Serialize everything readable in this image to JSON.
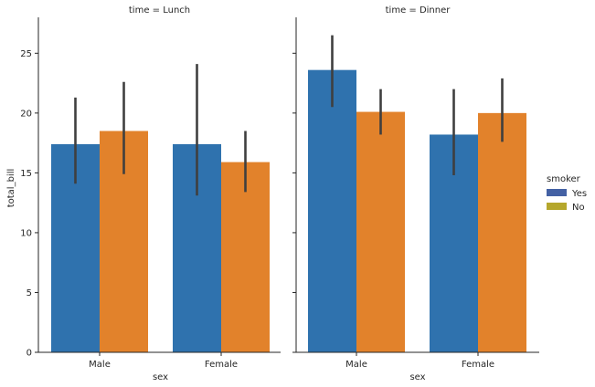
{
  "chart_data": {
    "type": "bar",
    "x_label": "sex",
    "y_label": "total_bill",
    "ylim": [
      0,
      28
    ],
    "y_ticks": [
      0,
      5,
      10,
      15,
      20,
      25
    ],
    "categories": [
      "Male",
      "Female"
    ],
    "grid": false,
    "legend": {
      "title": "smoker",
      "placement": "right",
      "items": [
        {
          "label": "Yes",
          "color": "#4461a4"
        },
        {
          "label": "No",
          "color": "#b5a72c"
        }
      ]
    },
    "series_colors": {
      "Yes": "#2f72ae",
      "No": "#e2822b"
    },
    "facets": [
      {
        "title": "time = Lunch",
        "series": [
          {
            "name": "Yes",
            "values": [
              17.4,
              17.4
            ],
            "ci_low": [
              14.1,
              13.1
            ],
            "ci_high": [
              21.3,
              24.1
            ]
          },
          {
            "name": "No",
            "values": [
              18.5,
              15.9
            ],
            "ci_low": [
              14.9,
              13.4
            ],
            "ci_high": [
              22.6,
              18.5
            ]
          }
        ]
      },
      {
        "title": "time = Dinner",
        "series": [
          {
            "name": "Yes",
            "values": [
              23.6,
              18.2
            ],
            "ci_low": [
              20.5,
              14.8
            ],
            "ci_high": [
              26.5,
              22.0
            ]
          },
          {
            "name": "No",
            "values": [
              20.1,
              20.0
            ],
            "ci_low": [
              18.2,
              17.6
            ],
            "ci_high": [
              22.0,
              22.9
            ]
          }
        ]
      }
    ]
  }
}
